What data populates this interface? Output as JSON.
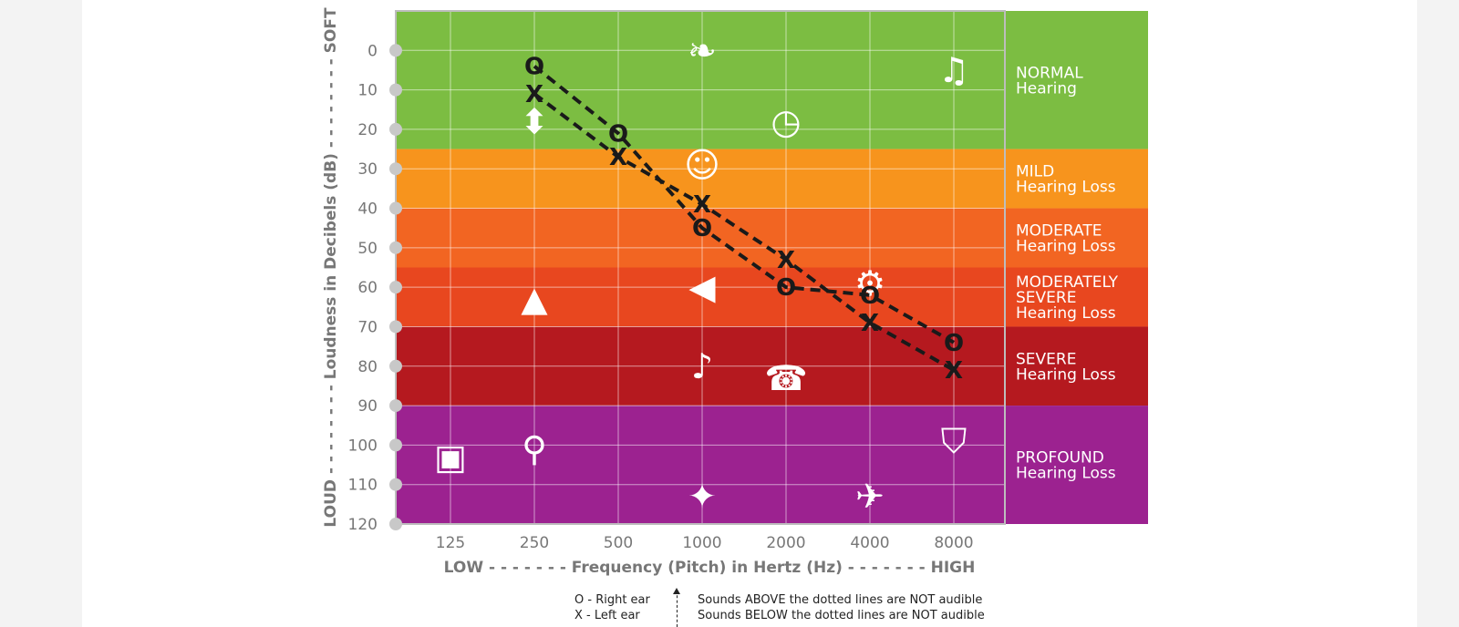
{
  "chart_data": {
    "type": "scatter",
    "title": "",
    "xlabel": "LOW - - - - - - - Frequency (Pitch) in Hertz (Hz) - - - - - - - HIGH",
    "ylabel": "LOUD - - - - - - - - Loudness in Decibels (dB) - - - - - - - - SOFT",
    "x_categories": [
      "125",
      "250",
      "500",
      "1000",
      "2000",
      "4000",
      "8000"
    ],
    "y_ticks": [
      "0",
      "10",
      "20",
      "30",
      "40",
      "50",
      "60",
      "70",
      "80",
      "90",
      "100",
      "110",
      "120"
    ],
    "ylim": [
      -10,
      120
    ],
    "y_inverted": true,
    "grid": true,
    "series": [
      {
        "name": "O - Right ear",
        "marker": "O",
        "x": [
          "250",
          "500",
          "1000",
          "2000",
          "4000",
          "8000"
        ],
        "values": [
          4,
          21,
          45,
          60,
          62,
          74
        ]
      },
      {
        "name": "X - Left ear",
        "marker": "X",
        "x": [
          "250",
          "500",
          "1000",
          "2000",
          "4000",
          "8000"
        ],
        "values": [
          11,
          27,
          39,
          53,
          69,
          81
        ]
      }
    ],
    "bands": [
      {
        "label_top": "NORMAL",
        "label_bottom": "Hearing",
        "from": -10,
        "to": 25,
        "color": "#7cbd42"
      },
      {
        "label_top": "MILD",
        "label_bottom": "Hearing Loss",
        "from": 25,
        "to": 40,
        "color": "#f7941d"
      },
      {
        "label_top": "MODERATE",
        "label_bottom": "Hearing Loss",
        "from": 40,
        "to": 55,
        "color": "#f26522"
      },
      {
        "label_top": "MODERATELY",
        "label_mid": "SEVERE",
        "label_bottom": "Hearing Loss",
        "from": 55,
        "to": 70,
        "color": "#e8471f"
      },
      {
        "label_top": "SEVERE",
        "label_bottom": "Hearing Loss",
        "from": 70,
        "to": 90,
        "color": "#b5191f"
      },
      {
        "label_top": "PROFOUND",
        "label_bottom": "Hearing Loss",
        "from": 90,
        "to": 120,
        "color": "#9c2290"
      }
    ],
    "icons": [
      {
        "name": "faucet-icon",
        "x": "250",
        "y": 18
      },
      {
        "name": "leaf-icon",
        "x": "1000",
        "y": 0
      },
      {
        "name": "clock-icon",
        "x": "2000",
        "y": 18
      },
      {
        "name": "bird-icon",
        "x": "8000",
        "y": 5
      },
      {
        "name": "speaking-person-icon",
        "x": "1000",
        "y": 29
      },
      {
        "name": "dog-icon",
        "x": "250",
        "y": 63
      },
      {
        "name": "megaphone-icon",
        "x": "1000",
        "y": 60
      },
      {
        "name": "vacuum-icon",
        "x": "4000",
        "y": 59
      },
      {
        "name": "piano-icon",
        "x": "1000",
        "y": 80
      },
      {
        "name": "telephone-icon",
        "x": "2000",
        "y": 83
      },
      {
        "name": "bus-icon",
        "x": "125",
        "y": 103
      },
      {
        "name": "lawnmower-icon",
        "x": "250",
        "y": 101
      },
      {
        "name": "gun-icon",
        "x": "1000",
        "y": 113
      },
      {
        "name": "airplane-icon",
        "x": "4000",
        "y": 113
      },
      {
        "name": "motorcycle-icon",
        "x": "8000",
        "y": 99
      }
    ]
  },
  "legend": {
    "right_ear": "O - Right ear",
    "left_ear": "X - Left ear",
    "above_note": "Sounds ABOVE the dotted lines are NOT audible",
    "below_note": "Sounds BELOW the dotted lines are NOT audible"
  },
  "colors": {
    "grid": "#ffffff",
    "axis_text": "#777777",
    "marker": "#1a1a1a",
    "tick_dot": "#c8c8c8",
    "frame": "#bdbdbd"
  }
}
